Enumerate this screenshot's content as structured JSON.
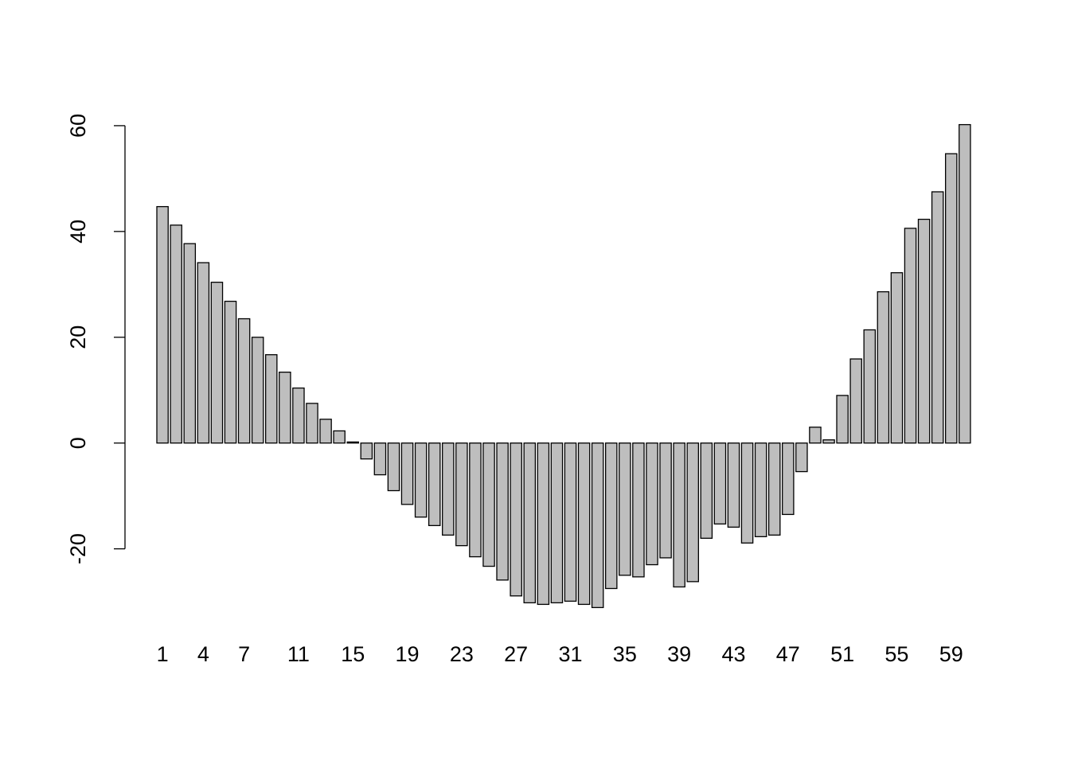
{
  "chart_data": {
    "type": "bar",
    "categories": [
      "1",
      null,
      null,
      "4",
      null,
      null,
      "7",
      null,
      null,
      null,
      "11",
      null,
      null,
      null,
      "15",
      null,
      null,
      null,
      "19",
      null,
      null,
      null,
      "23",
      null,
      null,
      null,
      "27",
      null,
      null,
      null,
      "31",
      null,
      null,
      null,
      "35",
      null,
      null,
      null,
      "39",
      null,
      null,
      null,
      "43",
      null,
      null,
      null,
      "47",
      null,
      null,
      null,
      "51",
      null,
      null,
      null,
      "55",
      null,
      null,
      null,
      "59",
      null
    ],
    "values": [
      44.7,
      41.2,
      37.7,
      34.1,
      30.4,
      26.8,
      23.5,
      20.0,
      16.7,
      13.4,
      10.4,
      7.5,
      4.5,
      2.3,
      0.2,
      -3.0,
      -6.0,
      -9.0,
      -11.6,
      -14.0,
      -15.6,
      -17.4,
      -19.4,
      -21.5,
      -23.3,
      -25.9,
      -28.9,
      -30.2,
      -30.5,
      -30.2,
      -29.9,
      -30.5,
      -31.1,
      -27.5,
      -25.0,
      -25.3,
      -23.0,
      -21.7,
      -27.2,
      -26.2,
      -18.0,
      -15.3,
      -15.9,
      -18.9,
      -17.7,
      -17.4,
      -13.5,
      -5.4,
      3.0,
      0.6,
      9.0,
      15.9,
      21.4,
      28.6,
      32.2,
      40.6,
      42.3,
      47.5,
      54.7,
      60.2
    ],
    "color": "#bebebe",
    "ylim": [
      -34.8,
      63.9
    ],
    "yticks": [
      -20,
      0,
      20,
      40,
      60
    ]
  }
}
